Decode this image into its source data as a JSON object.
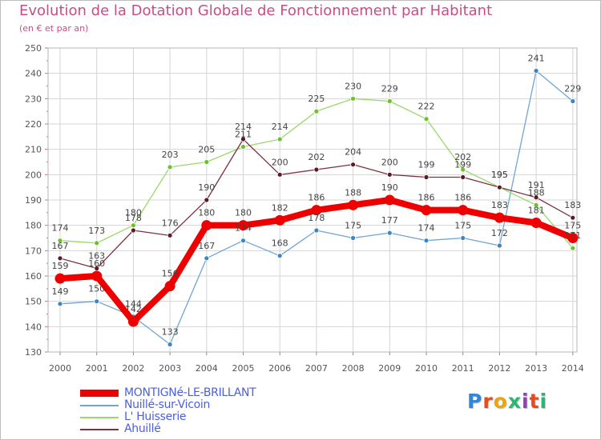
{
  "header": {
    "title": "Evolution de la Dotation Globale de Fonctionnement par Habitant",
    "subtitle": "(en € et par an)"
  },
  "logo": {
    "text": "Proxiti",
    "letters": [
      "P",
      "r",
      "o",
      "x",
      "i",
      "t",
      "i"
    ],
    "colors": [
      "#2e86de",
      "#e8491d",
      "#f0a30a",
      "#2bb673",
      "#8e44ad",
      "#e8491d",
      "#2bb673"
    ]
  },
  "chart_data": {
    "type": "line",
    "title": "Evolution de la Dotation Globale de Fonctionnement par Habitant",
    "subtitle": "(en € et par an)",
    "x": [
      2000,
      2001,
      2002,
      2003,
      2004,
      2005,
      2006,
      2007,
      2008,
      2009,
      2010,
      2011,
      2012,
      2013,
      2014
    ],
    "ylim": [
      130,
      250
    ],
    "yticks": [
      130,
      140,
      150,
      160,
      170,
      180,
      190,
      200,
      210,
      220,
      230,
      240,
      250
    ],
    "grid": true,
    "legend_position": "bottom-left",
    "series": [
      {
        "name": "MONTIGNé-LE-BRILLANT",
        "color": "#ee0000",
        "marker": "#ee0000",
        "values": [
          159,
          160,
          142,
          156,
          180,
          180,
          182,
          186,
          188,
          190,
          186,
          186,
          183,
          181,
          175
        ]
      },
      {
        "name": "Nuillé-sur-Vicoin",
        "color": "#6fa5d4",
        "marker": "#3d85c6",
        "values": [
          149,
          150,
          144,
          133,
          167,
          174,
          168,
          178,
          175,
          177,
          174,
          175,
          172,
          241,
          229
        ]
      },
      {
        "name": "L' Huisserie",
        "color": "#9ad86a",
        "marker": "#6cc02e",
        "values": [
          174,
          173,
          180,
          203,
          205,
          211,
          214,
          225,
          230,
          229,
          222,
          202,
          195,
          188,
          171
        ]
      },
      {
        "name": "Ahuillé",
        "color": "#7a3340",
        "marker": "#5a1a26",
        "values": [
          167,
          163,
          178,
          176,
          190,
          214,
          200,
          202,
          204,
          200,
          199,
          199,
          195,
          191,
          183
        ]
      }
    ]
  }
}
